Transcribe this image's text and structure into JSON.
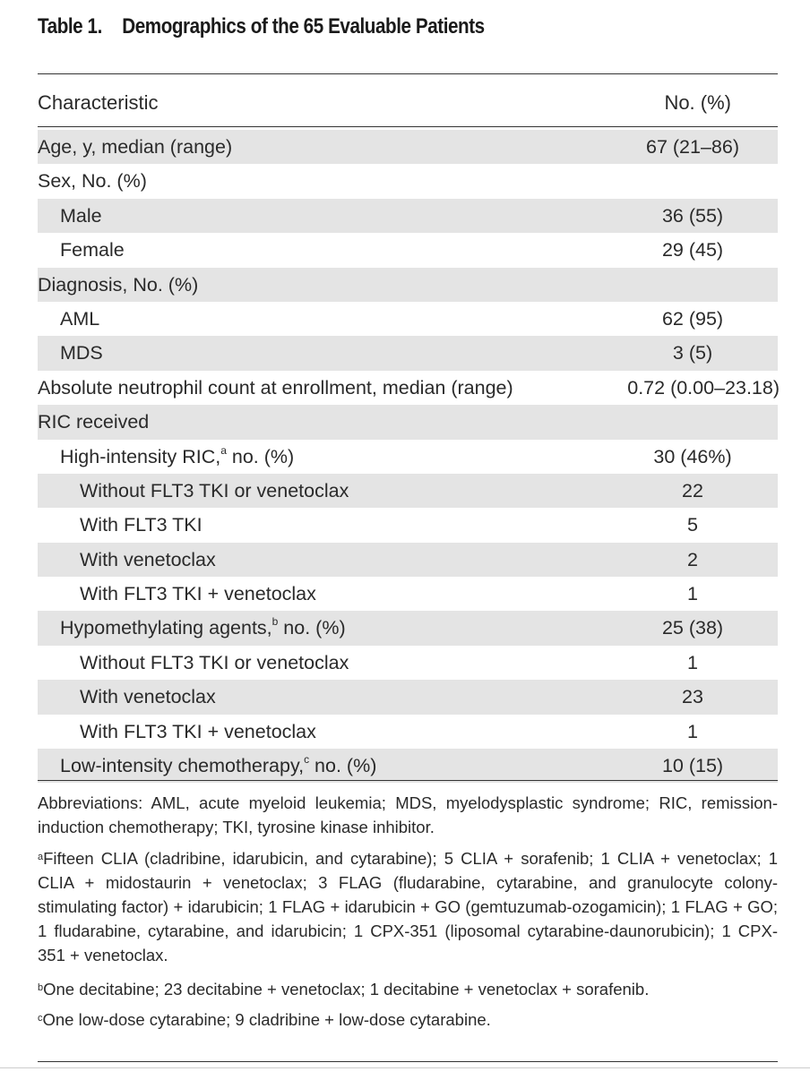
{
  "title": {
    "label": "Table 1.",
    "text": "Demographics of the 65 Evaluable Patients"
  },
  "header": {
    "col1": "Characteristic",
    "col2": "No. (%)"
  },
  "rows": [
    {
      "label": "Age, y, median (range)",
      "sup": "",
      "rest": "",
      "value": "67 (21–86)",
      "indent": 0,
      "shaded": true
    },
    {
      "label": "Sex, No. (%)",
      "sup": "",
      "rest": "",
      "value": "",
      "indent": 0,
      "shaded": false
    },
    {
      "label": "Male",
      "sup": "",
      "rest": "",
      "value": "36 (55)",
      "indent": 1,
      "shaded": true
    },
    {
      "label": "Female",
      "sup": "",
      "rest": "",
      "value": "29 (45)",
      "indent": 1,
      "shaded": false
    },
    {
      "label": "Diagnosis, No. (%)",
      "sup": "",
      "rest": "",
      "value": "",
      "indent": 0,
      "shaded": true
    },
    {
      "label": "AML",
      "sup": "",
      "rest": "",
      "value": "62 (95)",
      "indent": 1,
      "shaded": false
    },
    {
      "label": "MDS",
      "sup": "",
      "rest": "",
      "value": "3 (5)",
      "indent": 1,
      "shaded": true
    },
    {
      "label": "Absolute neutrophil count at enrollment, median (range)",
      "sup": "",
      "rest": "",
      "value": "0.72 (0.00–23.18)",
      "indent": 0,
      "shaded": false,
      "wide": true
    },
    {
      "label": "RIC received",
      "sup": "",
      "rest": "",
      "value": "",
      "indent": 0,
      "shaded": true
    },
    {
      "label": "High-intensity RIC,",
      "sup": "a",
      "rest": " no. (%)",
      "value": "30 (46%)",
      "indent": 1,
      "shaded": false
    },
    {
      "label": "Without FLT3 TKI or venetoclax",
      "sup": "",
      "rest": "",
      "value": "22",
      "indent": 2,
      "shaded": true
    },
    {
      "label": "With FLT3 TKI",
      "sup": "",
      "rest": "",
      "value": "5",
      "indent": 2,
      "shaded": false
    },
    {
      "label": "With venetoclax",
      "sup": "",
      "rest": "",
      "value": "2",
      "indent": 2,
      "shaded": true
    },
    {
      "label": "With FLT3 TKI + venetoclax",
      "sup": "",
      "rest": "",
      "value": "1",
      "indent": 2,
      "shaded": false
    },
    {
      "label": "Hypomethylating agents,",
      "sup": "b",
      "rest": " no. (%)",
      "value": "25 (38)",
      "indent": 1,
      "shaded": true
    },
    {
      "label": "Without FLT3 TKI or venetoclax",
      "sup": "",
      "rest": "",
      "value": "1",
      "indent": 2,
      "shaded": false
    },
    {
      "label": "With venetoclax",
      "sup": "",
      "rest": "",
      "value": "23",
      "indent": 2,
      "shaded": true
    },
    {
      "label": "With FLT3 TKI + venetoclax",
      "sup": "",
      "rest": "",
      "value": "1",
      "indent": 2,
      "shaded": false
    },
    {
      "label": "Low-intensity chemotherapy,",
      "sup": "c",
      "rest": " no. (%)",
      "value": "10 (15)",
      "indent": 1,
      "shaded": true
    }
  ],
  "footnotes": {
    "abbreviations": "Abbreviations: AML, acute myeloid leukemia; MDS, myelodysplastic syndrome; RIC, remission-induction chemotherapy; TKI, tyrosine kinase inhibitor.",
    "notes": [
      {
        "mark": "a",
        "text": "Fifteen CLIA (cladribine, idarubicin, and cytarabine); 5 CLIA + sorafenib; 1 CLIA + venetoclax; 1 CLIA + midostaurin + venetoclax; 3 FLAG (fludarabine, cytarabine, and granulocyte colony-stimulating factor) + idarubicin; 1 FLAG + idarubicin + GO (gemtuzumab-ozogamicin); 1 FLAG + GO; 1 fludarabine, cytarabine, and idarubicin; 1 CPX-351 (liposomal cytarabine-daunorubicin); 1 CPX-351 + venetoclax."
      },
      {
        "mark": "b",
        "text": "One decitabine; 23 decitabine + venetoclax; 1 decitabine + venetoclax + sorafenib."
      },
      {
        "mark": "c",
        "text": "One low-dose cytarabine; 9 cladribine + low-dose cytarabine."
      }
    ]
  }
}
